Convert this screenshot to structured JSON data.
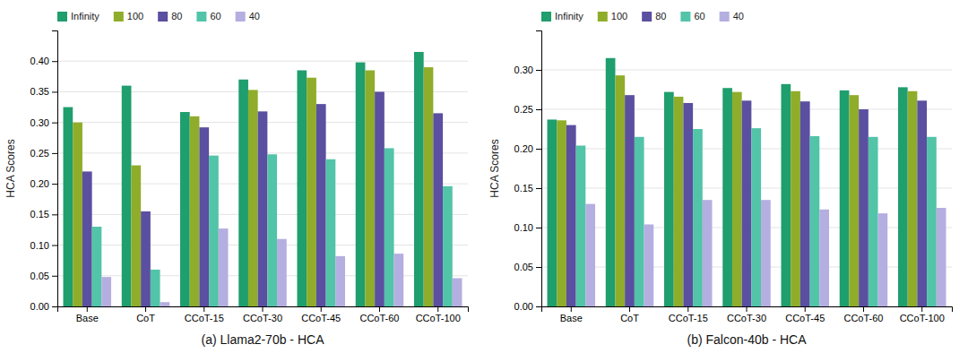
{
  "chart_data": [
    {
      "type": "bar",
      "title": "(a) Llama2-70b - HCA",
      "ylabel": "HCA Scores",
      "categories": [
        "Base",
        "CoT",
        "CCoT-15",
        "CCoT-30",
        "CCoT-45",
        "CCoT-60",
        "CCoT-100"
      ],
      "series": [
        {
          "name": "Infinity",
          "color": "#1f9e6e",
          "values": [
            0.325,
            0.36,
            0.317,
            0.37,
            0.385,
            0.398,
            0.415
          ]
        },
        {
          "name": "100",
          "color": "#8fad2a",
          "values": [
            0.3,
            0.23,
            0.31,
            0.353,
            0.373,
            0.385,
            0.39
          ]
        },
        {
          "name": "80",
          "color": "#5a4fa0",
          "values": [
            0.22,
            0.155,
            0.292,
            0.318,
            0.33,
            0.35,
            0.315
          ]
        },
        {
          "name": "60",
          "color": "#52c4a8",
          "values": [
            0.13,
            0.06,
            0.246,
            0.248,
            0.24,
            0.258,
            0.196
          ]
        },
        {
          "name": "40",
          "color": "#b5aee0",
          "values": [
            0.048,
            0.007,
            0.127,
            0.11,
            0.082,
            0.086,
            0.046
          ]
        }
      ],
      "ylim": [
        0,
        0.45
      ],
      "yticks": [
        {
          "value": 0,
          "label": "0.00"
        },
        0.05,
        {
          "value": 0.1,
          "label": "0.10"
        },
        0.15,
        {
          "value": 0.2,
          "label": "0.20"
        },
        0.25,
        {
          "value": 0.3,
          "label": "0.30"
        },
        0.35,
        {
          "value": 0.4,
          "label": "0.40"
        }
      ],
      "grid": true,
      "legend": "upper left"
    },
    {
      "type": "bar",
      "title": "(b) Falcon-40b - HCA",
      "ylabel": "HCA Scores",
      "categories": [
        "Base",
        "CoT",
        "CCoT-15",
        "CCoT-30",
        "CCoT-45",
        "CCoT-60",
        "CCoT-100"
      ],
      "series": [
        {
          "name": "Infinity",
          "color": "#1f9e6e",
          "values": [
            0.237,
            0.315,
            0.272,
            0.277,
            0.282,
            0.274,
            0.278
          ]
        },
        {
          "name": "100",
          "color": "#8fad2a",
          "values": [
            0.236,
            0.293,
            0.266,
            0.272,
            0.273,
            0.268,
            0.273
          ]
        },
        {
          "name": "80",
          "color": "#5a4fa0",
          "values": [
            0.23,
            0.268,
            0.258,
            0.261,
            0.26,
            0.25,
            0.261
          ]
        },
        {
          "name": "60",
          "color": "#52c4a8",
          "values": [
            0.204,
            0.215,
            0.225,
            0.226,
            0.216,
            0.215,
            0.215
          ]
        },
        {
          "name": "40",
          "color": "#b5aee0",
          "values": [
            0.13,
            0.104,
            0.135,
            0.135,
            0.123,
            0.118,
            0.125
          ]
        }
      ],
      "ylim": [
        0,
        0.35
      ],
      "yticks": [
        {
          "value": 0,
          "label": "0.00"
        },
        0.05,
        {
          "value": 0.1,
          "label": "0.10"
        },
        0.15,
        {
          "value": 0.2,
          "label": "0.20"
        },
        0.25,
        {
          "value": 0.3,
          "label": "0.30"
        }
      ],
      "grid": true,
      "legend": "upper left"
    }
  ]
}
